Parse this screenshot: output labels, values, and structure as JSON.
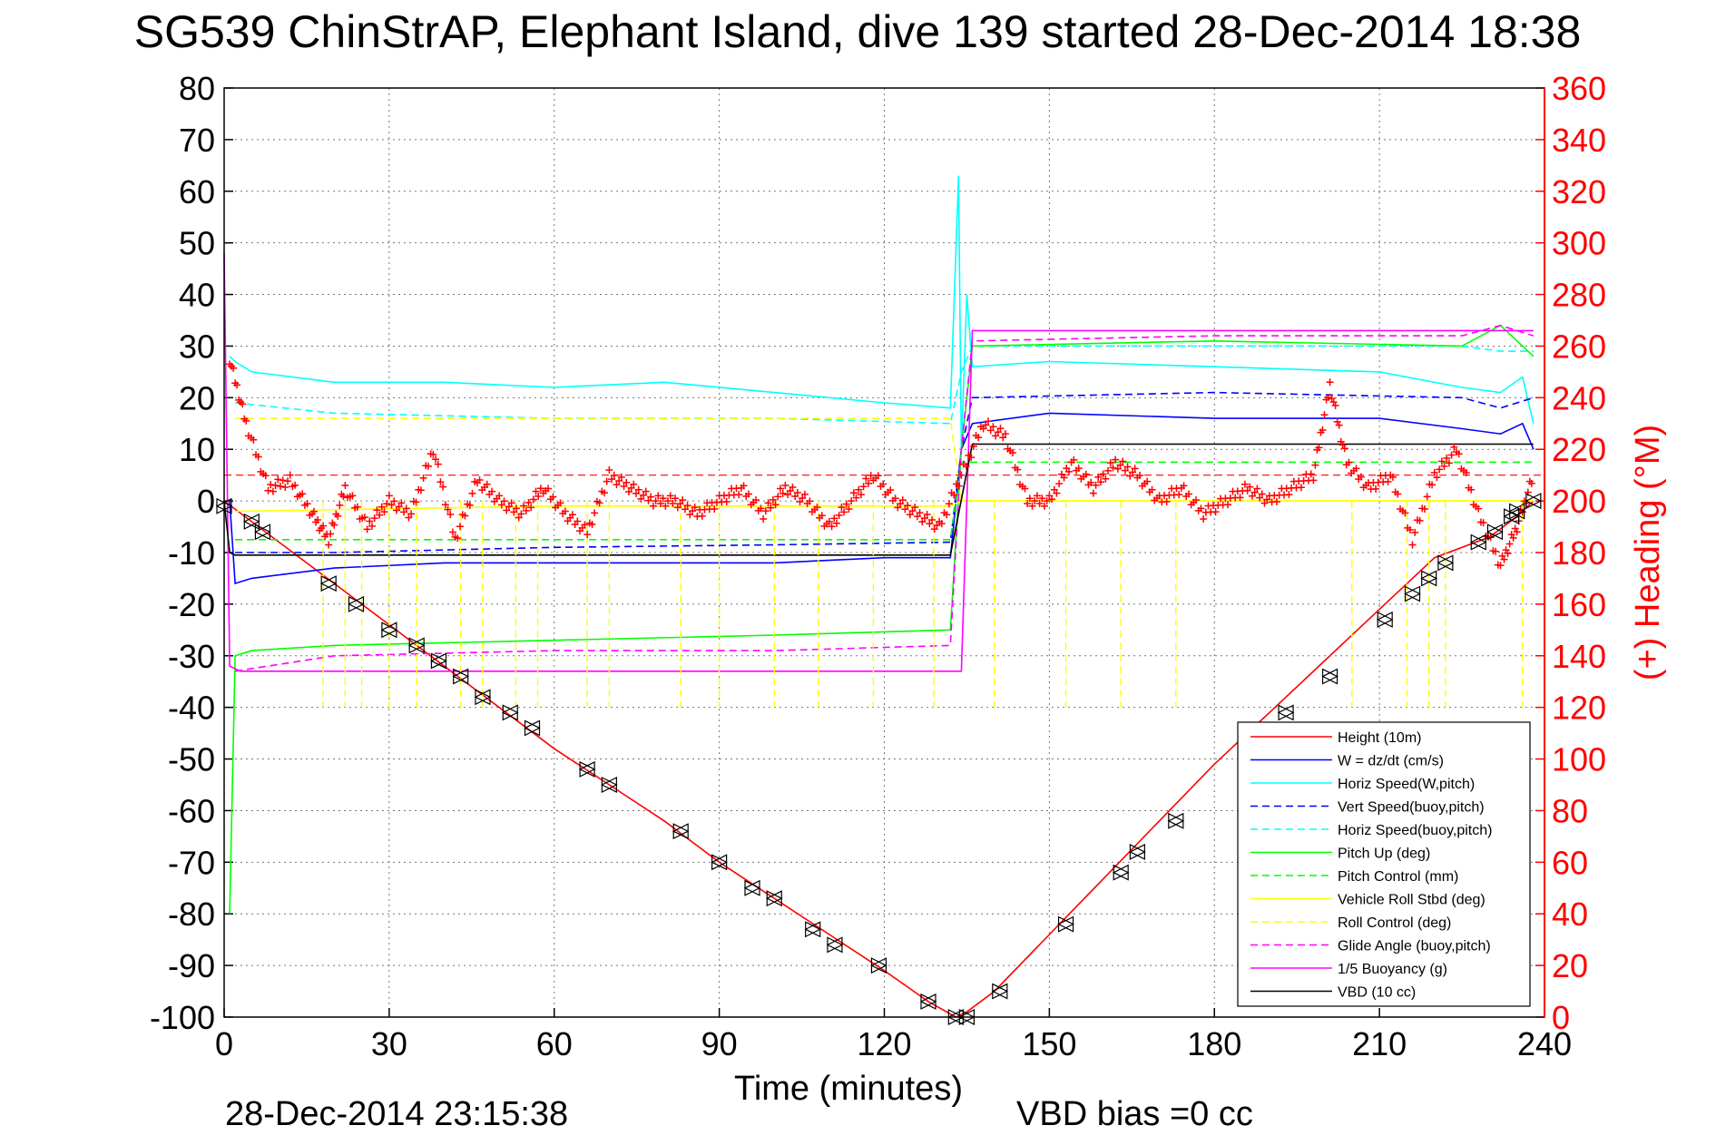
{
  "chart_data": {
    "type": "line",
    "title": "SG539 ChinStrAP, Elephant Island, dive 139 started 28-Dec-2014 18:38",
    "xlabel": "Time (minutes)",
    "ylabel_right": "(+) Heading (°M)",
    "xlim": [
      0,
      240
    ],
    "ylim": [
      -100,
      80
    ],
    "ylim_right": [
      0,
      360
    ],
    "x_ticks": [
      0,
      30,
      60,
      90,
      120,
      150,
      180,
      210,
      240
    ],
    "y_ticks": [
      80,
      70,
      60,
      50,
      40,
      30,
      20,
      10,
      0,
      -10,
      -20,
      -30,
      -40,
      -50,
      -60,
      -70,
      -80,
      -90,
      -100
    ],
    "y_ticks_right": [
      360,
      340,
      320,
      300,
      280,
      260,
      240,
      220,
      200,
      180,
      160,
      140,
      120,
      100,
      80,
      60,
      40,
      20,
      0
    ],
    "grid": true,
    "legend_position": "bottom-right",
    "footer_left": "28-Dec-2014 23:15:38",
    "footer_right": "VBD bias =0 cc",
    "series": [
      {
        "name": "Height (10m)",
        "color": "#ff0000",
        "style": "solid",
        "x": [
          0,
          5,
          10,
          20,
          30,
          40,
          50,
          60,
          70,
          80,
          90,
          100,
          110,
          120,
          128,
          133,
          135,
          140,
          150,
          160,
          170,
          180,
          190,
          200,
          210,
          220,
          230,
          235,
          238
        ],
        "y": [
          0,
          -4,
          -8,
          -16,
          -24,
          -32,
          -40,
          -48,
          -55,
          -62,
          -70,
          -77,
          -84,
          -91,
          -97,
          -100,
          -99,
          -95,
          -84,
          -73,
          -62,
          -51,
          -41,
          -31,
          -21,
          -11,
          -7,
          -3,
          0
        ]
      },
      {
        "name": "W = dz/dt (cm/s)",
        "color": "#0000ff",
        "style": "solid",
        "x": [
          1,
          2,
          5,
          20,
          40,
          60,
          80,
          100,
          120,
          132,
          134,
          136,
          150,
          180,
          210,
          225,
          232,
          236,
          238
        ],
        "y": [
          0,
          -16,
          -15,
          -13,
          -12,
          -12,
          -12,
          -12,
          -11,
          -11,
          10,
          15,
          17,
          16,
          16,
          14,
          13,
          15,
          10
        ]
      },
      {
        "name": "Horiz Speed(W,pitch)",
        "color": "#00ffff",
        "style": "solid",
        "x": [
          1,
          2,
          5,
          20,
          40,
          60,
          80,
          100,
          120,
          132,
          133.5,
          134,
          135,
          136,
          150,
          180,
          210,
          225,
          232,
          236,
          238
        ],
        "y": [
          28,
          27,
          25,
          23,
          23,
          22,
          23,
          21,
          19,
          18,
          63,
          10,
          40,
          26,
          27,
          26,
          25,
          22,
          21,
          24,
          15
        ]
      },
      {
        "name": "Vert Speed(buoy,pitch)",
        "color": "#0000ff",
        "style": "dashed",
        "x": [
          2,
          20,
          60,
          100,
          132,
          134,
          136,
          180,
          225,
          232,
          238
        ],
        "y": [
          -10,
          -10,
          -9,
          -8.5,
          -8,
          10,
          20,
          21,
          20,
          18,
          20
        ]
      },
      {
        "name": "Horiz Speed(buoy,pitch)",
        "color": "#00ffff",
        "style": "dashed",
        "x": [
          2,
          20,
          60,
          100,
          132,
          134,
          136,
          180,
          225,
          232,
          238
        ],
        "y": [
          19,
          17,
          16,
          16,
          15,
          25,
          30,
          30,
          30,
          29,
          29
        ]
      },
      {
        "name": "Pitch Up (deg)",
        "color": "#00ff00",
        "style": "solid",
        "x": [
          1,
          2,
          5,
          20,
          60,
          100,
          132,
          134,
          136,
          180,
          225,
          232,
          236,
          238
        ],
        "y": [
          -80,
          -30,
          -29,
          -28,
          -27,
          -26,
          -25,
          10,
          30,
          31,
          30,
          34,
          30,
          28
        ]
      },
      {
        "name": "Pitch Control (mm)",
        "color": "#00ff00",
        "style": "dashed",
        "x": [
          2,
          132,
          134,
          238
        ],
        "y": [
          -7.5,
          -7.5,
          7.5,
          7.5
        ]
      },
      {
        "name": "Vehicle Roll Stbd (deg)",
        "color": "#ffff00",
        "style": "solid",
        "x": [
          2,
          60,
          132,
          134,
          238
        ],
        "y": [
          -2,
          -1,
          -1,
          0,
          0
        ]
      },
      {
        "name": "Roll Control (deg)",
        "color": "#ffff00",
        "style": "dashed",
        "x": [
          2,
          132,
          134,
          238
        ],
        "y": [
          16,
          16,
          0,
          0
        ]
      },
      {
        "name": "Glide Angle (buoy,pitch)",
        "color": "#ff00ff",
        "style": "dashed",
        "x": [
          2,
          20,
          60,
          100,
          132,
          134,
          136,
          180,
          225,
          232,
          238
        ],
        "y": [
          -33,
          -30,
          -29,
          -29,
          -28,
          10,
          31,
          32,
          32,
          34,
          32
        ]
      },
      {
        "name": "1/5 Buoyancy (g)",
        "color": "#ff00ff",
        "style": "solid",
        "x": [
          0,
          1,
          3,
          134,
          136,
          238
        ],
        "y": [
          48,
          -32,
          -33,
          -33,
          33,
          33
        ]
      },
      {
        "name": "VBD (10 cc)",
        "color": "#000000",
        "style": "solid",
        "x": [
          0,
          1,
          2,
          132,
          136,
          238
        ],
        "y": [
          0,
          -10,
          -10.5,
          -10.5,
          11,
          11
        ]
      }
    ],
    "heading": {
      "name": "(+) Heading",
      "color": "#ff0000",
      "marker": "+",
      "axis": "right",
      "mean": 210,
      "x": [
        1,
        4,
        8,
        12,
        16,
        19,
        22,
        26,
        30,
        34,
        38,
        42,
        46,
        50,
        54,
        58,
        62,
        66,
        70,
        74,
        78,
        82,
        86,
        90,
        94,
        98,
        102,
        106,
        110,
        114,
        118,
        122,
        126,
        130,
        134,
        138,
        142,
        146,
        150,
        154,
        158,
        162,
        166,
        170,
        174,
        178,
        182,
        186,
        190,
        194,
        198,
        201,
        204,
        208,
        212,
        216,
        220,
        224,
        228,
        232,
        235,
        238
      ],
      "y": [
        255,
        230,
        205,
        208,
        195,
        185,
        205,
        190,
        200,
        195,
        220,
        185,
        208,
        200,
        195,
        205,
        195,
        188,
        210,
        205,
        200,
        200,
        195,
        200,
        205,
        195,
        205,
        200,
        190,
        200,
        210,
        200,
        195,
        190,
        210,
        230,
        225,
        200,
        200,
        215,
        205,
        215,
        210,
        200,
        205,
        195,
        200,
        205,
        200,
        205,
        210,
        245,
        215,
        205,
        210,
        185,
        210,
        220,
        195,
        175,
        190,
        210
      ]
    },
    "markers": {
      "name": "Height markers",
      "marker": "triangles",
      "x": [
        0,
        5,
        7,
        19,
        24,
        30,
        35,
        39,
        43,
        47,
        52,
        56,
        66,
        70,
        83,
        90,
        96,
        100,
        107,
        111,
        119,
        128,
        133,
        135,
        141,
        153,
        163,
        166,
        173,
        193,
        201,
        211,
        216,
        219,
        222,
        228,
        231,
        234,
        235,
        238
      ],
      "y": [
        -1,
        -4,
        -6,
        -16,
        -20,
        -25,
        -28,
        -31,
        -34,
        -38,
        -41,
        -44,
        -52,
        -55,
        -64,
        -70,
        -75,
        -77,
        -83,
        -86,
        -90,
        -97,
        -100,
        -100,
        -95,
        -82,
        -72,
        -68,
        -62,
        -41,
        -34,
        -23,
        -18,
        -15,
        -12,
        -8,
        -6,
        -3,
        -2,
        0
      ]
    }
  }
}
